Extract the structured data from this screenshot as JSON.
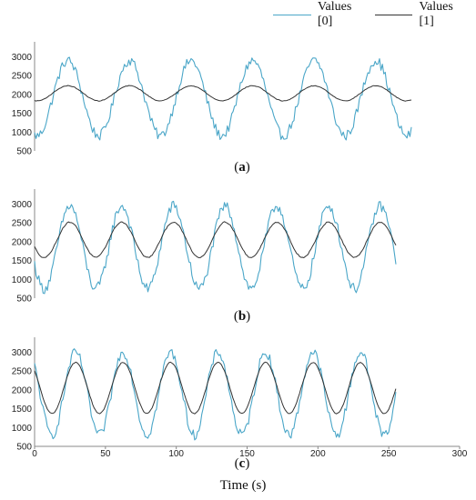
{
  "legend": {
    "label_0": "Values [0]",
    "label_1": "Values [1]"
  },
  "captions": {
    "a": "a",
    "b": "b",
    "c": "c"
  },
  "xaxis_title": "Time (s)",
  "colors": {
    "values0": "#4aa6c8",
    "values1": "#333333",
    "axis": "#888888"
  },
  "chart_data": [
    {
      "type": "line",
      "panel": "a",
      "xlim": [
        0,
        260
      ],
      "ylim": [
        500,
        3300
      ],
      "yticks": [
        500,
        1000,
        1500,
        2000,
        2500,
        3000
      ],
      "series": [
        {
          "name": "Values [0]",
          "period": 42.5,
          "center": 1900,
          "amplitude": 1000,
          "peak_at": 23,
          "noise": 130
        },
        {
          "name": "Values [1]",
          "period": 42.5,
          "center": 2030,
          "amplitude": 200,
          "peak_at": 23,
          "noise": 8
        }
      ]
    },
    {
      "type": "line",
      "panel": "b",
      "xlim": [
        0,
        255
      ],
      "ylim": [
        500,
        3300
      ],
      "yticks": [
        500,
        1000,
        1500,
        2000,
        2500,
        3000
      ],
      "series": [
        {
          "name": "Values [0]",
          "period": 36.5,
          "center": 1850,
          "amplitude": 1100,
          "peak_at": 25,
          "noise": 140
        },
        {
          "name": "Values [1]",
          "period": 36.5,
          "center": 2050,
          "amplitude": 470,
          "peak_at": 25,
          "noise": 15
        }
      ]
    },
    {
      "type": "line",
      "panel": "c",
      "xlim": [
        0,
        300
      ],
      "ylim": [
        500,
        3300
      ],
      "yticks": [
        500,
        1000,
        1500,
        2000,
        2500,
        3000
      ],
      "xticks": [
        0,
        50,
        100,
        150,
        200,
        250,
        300
      ],
      "series": [
        {
          "name": "Values [0]",
          "period": 33.5,
          "center": 1900,
          "amplitude": 1100,
          "peak_at": 29,
          "noise": 130,
          "x_range": [
            0,
            255
          ]
        },
        {
          "name": "Values [1]",
          "period": 33.5,
          "center": 2050,
          "amplitude": 680,
          "peak_at": 29,
          "noise": 10,
          "x_range": [
            0,
            255
          ]
        }
      ]
    }
  ]
}
